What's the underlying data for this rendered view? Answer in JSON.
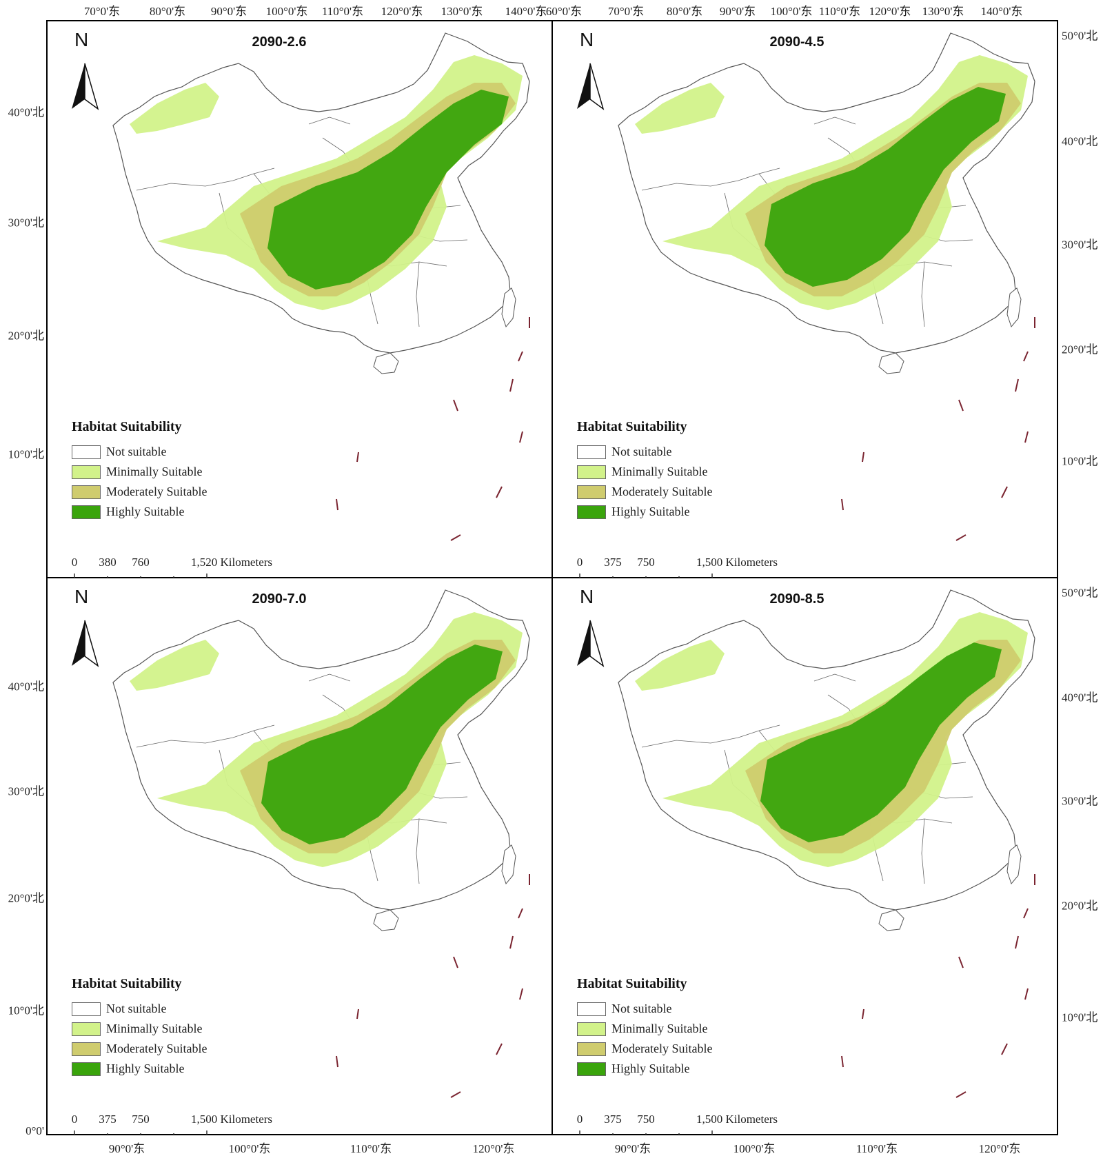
{
  "colors": {
    "not_suitable": "#ffffff",
    "minimally_suitable": "#d2f28a",
    "moderately_suitable": "#cfcc6e",
    "highly_suitable": "#3aa40c",
    "boundary": "#555555",
    "frame": "#000000",
    "dash_line": "#7a2430"
  },
  "axes": {
    "top_left_lon": [
      "70°0'东",
      "80°0'东",
      "90°0'东",
      "100°0'东",
      "110°0'东",
      "120°0'东",
      "130°0'东",
      "140°0'东"
    ],
    "top_right_lon": [
      "60°0'东",
      "70°0'东",
      "80°0'东",
      "90°0'东",
      "100°0'东",
      "110°0'东",
      "120°0'东",
      "130°0'东",
      "140°0'东"
    ],
    "bottom_left_lon": [
      "90°0'东",
      "100°0'东",
      "110°0'东",
      "120°0'东"
    ],
    "bottom_right_lon": [
      "90°0'东",
      "100°0'东",
      "110°0'东",
      "120°0'东"
    ],
    "left_lat_upper": [
      "40°0'北",
      "30°0'北",
      "20°0'北",
      "10°0'北"
    ],
    "left_lat_lower": [
      "40°0'北",
      "30°0'北",
      "20°0'北",
      "10°0'北",
      "0°0'"
    ],
    "right_lat_upper": [
      "50°0'北",
      "40°0'北",
      "30°0'北",
      "20°0'北",
      "10°0'北"
    ],
    "right_lat_lower": [
      "50°0'北",
      "40°0'北",
      "30°0'北",
      "20°0'北",
      "10°0'北"
    ]
  },
  "legend": {
    "title": "Habitat Suitability",
    "items": [
      {
        "label": "Not suitable",
        "color": "#ffffff"
      },
      {
        "label": "Minimally Suitable",
        "color": "#d2f28a"
      },
      {
        "label": "Moderately Suitable",
        "color": "#cfcc6e"
      },
      {
        "label": "Highly Suitable",
        "color": "#3aa40c"
      }
    ]
  },
  "north_arrow": "N",
  "panels": [
    {
      "title": "2090-2.6",
      "scale": {
        "ticks": [
          "0",
          "380",
          "760"
        ],
        "end": "1,520 Kilometers"
      },
      "highly_extent": 0.5
    },
    {
      "title": "2090-4.5",
      "scale": {
        "ticks": [
          "0",
          "375",
          "750"
        ],
        "end": "1,500 Kilometers"
      },
      "highly_extent": 0.7
    },
    {
      "title": "2090-7.0",
      "scale": {
        "ticks": [
          "0",
          "375",
          "750"
        ],
        "end": "1,500 Kilometers"
      },
      "highly_extent": 0.65
    },
    {
      "title": "2090-8.5",
      "scale": {
        "ticks": [
          "0",
          "375",
          "750"
        ],
        "end": "1,500 Kilometers"
      },
      "highly_extent": 0.8
    }
  ]
}
